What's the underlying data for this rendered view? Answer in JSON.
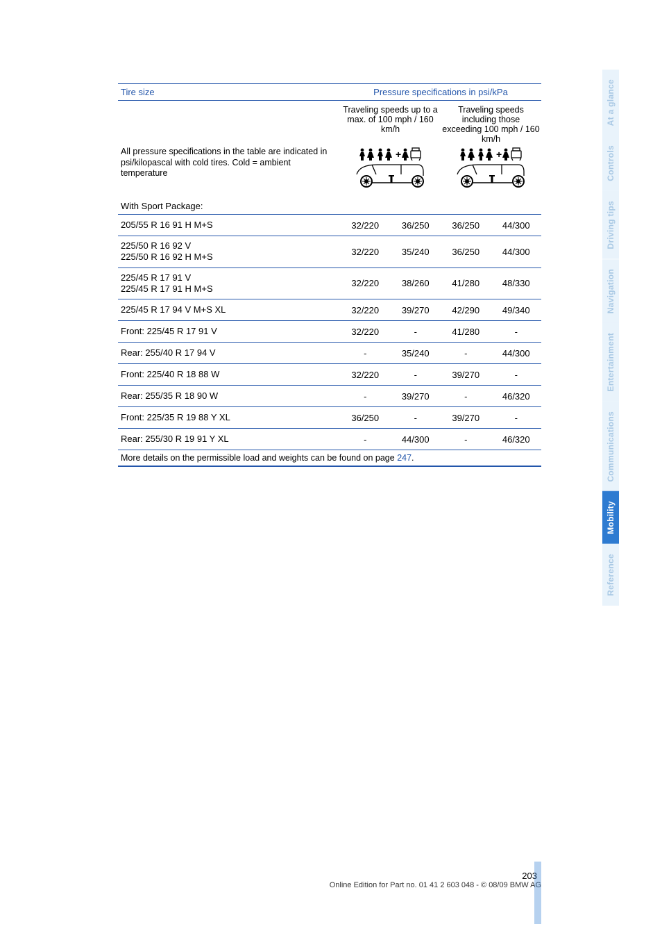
{
  "table": {
    "header": {
      "left": "Tire size",
      "right": "Pressure specifications in psi/kPa"
    },
    "subhead": {
      "col1": "Traveling speeds up to a max. of 100 mph / 160 km/h",
      "col2": "Traveling speeds including those exceeding 100 mph / 160 km/h"
    },
    "note_left": "All pressure specifications in the table are indicated in psi/kilopascal with cold tires. Cold = ambient temperature",
    "section_title": "With Sport Package:",
    "rows": [
      {
        "label": "205/55 R 16 91 H M+S",
        "v": [
          "32/220",
          "36/250",
          "36/250",
          "44/300"
        ]
      },
      {
        "label": "225/50 R 16 92 V\n225/50 R 16 92 H M+S",
        "v": [
          "32/220",
          "35/240",
          "36/250",
          "44/300"
        ]
      },
      {
        "label": "225/45 R 17 91 V\n225/45 R 17 91 H M+S",
        "v": [
          "32/220",
          "38/260",
          "41/280",
          "48/330"
        ]
      },
      {
        "label": "225/45 R 17 94 V M+S XL",
        "v": [
          "32/220",
          "39/270",
          "42/290",
          "49/340"
        ]
      },
      {
        "label": "Front: 225/45 R 17 91 V",
        "v": [
          "32/220",
          "-",
          "41/280",
          "-"
        ]
      },
      {
        "label": "Rear: 255/40 R 17 94 V",
        "v": [
          "-",
          "35/240",
          "-",
          "44/300"
        ]
      },
      {
        "label": "Front: 225/40 R 18 88 W",
        "v": [
          "32/220",
          "-",
          "39/270",
          "-"
        ]
      },
      {
        "label": "Rear: 255/35 R 18 90 W",
        "v": [
          "-",
          "39/270",
          "-",
          "46/320"
        ]
      },
      {
        "label": "Front: 225/35 R 19 88 Y XL",
        "v": [
          "36/250",
          "-",
          "39/270",
          "-"
        ]
      },
      {
        "label": "Rear: 255/30 R 19 91 Y XL",
        "v": [
          "-",
          "44/300",
          "-",
          "46/320"
        ]
      }
    ],
    "footnote_pre": "More details on the permissible load and weights can be found on page ",
    "footnote_page": "247",
    "footnote_post": "."
  },
  "tabs": [
    {
      "label": "At a glance",
      "active": false
    },
    {
      "label": "Controls",
      "active": false
    },
    {
      "label": "Driving tips",
      "active": false
    },
    {
      "label": "Navigation",
      "active": false
    },
    {
      "label": "Entertainment",
      "active": false
    },
    {
      "label": "Communications",
      "active": false
    },
    {
      "label": "Mobility",
      "active": true
    },
    {
      "label": "Reference",
      "active": false
    }
  ],
  "footer": {
    "page_number": "203",
    "line": "Online Edition for Part no. 01 41 2 603 048 - © 08/09 BMW AG"
  },
  "icons": {
    "svg": "<svg width=\"110\" height=\"60\" viewBox=\"0 0 110 60\"><g fill=\"#000\"><g transform=\"translate(10,2)\"><circle cx=\"4\" cy=\"3\" r=\"2.4\"/><path d=\"M2 6 h4 l2 6 l-2 0 l0 6 h-4 l0 -6 l-2 0 z\"/></g><g transform=\"translate(22,2)\"><circle cx=\"4\" cy=\"3\" r=\"2.4\"/><path d=\"M2 6 h4 l3 8 h-3 l0 4 h-4 l0 -4 h-3 z\"/></g><g transform=\"translate(36,2)\"><circle cx=\"4\" cy=\"3\" r=\"2.4\"/><path d=\"M2 6 h4 l2 6 l-2 0 l0 6 h-4 l0 -6 l-2 0 z\"/></g><g transform=\"translate(48,2)\"><circle cx=\"4\" cy=\"3\" r=\"2.4\"/><path d=\"M2 6 h4 l3 8 h-3 l0 4 h-4 l0 -4 h-3 z\"/></g><text x=\"62\" y=\"16\" font-size=\"14\" font-weight=\"bold\">+</text><g transform=\"translate(72,2)\"><circle cx=\"4\" cy=\"3\" r=\"2.4\"/><path d=\"M2 6 h4 l3 8 h-3 l0 4 h-4 l0 -4 h-3 z\"/></g><g transform=\"translate(84,2)\" stroke=\"#000\" fill=\"none\" stroke-width=\"1.3\"><rect x=\"0\" y=\"4\" width=\"14\" height=\"10\" rx=\"1\"/><path d=\"M0 14 l2 4 M14 14 l-2 4\"/><rect x=\"2\" y=\"0\" width=\"10\" height=\"4\"/></g><g transform=\"translate(6,26)\" stroke=\"#000\" fill=\"none\" stroke-width=\"1.3\"><path d=\"M0 14 Q 4 0 30 0 L 88 0 Q 96 0 96 10 L 96 16\"/><path d=\"M22 0 L 28 14\"/><path d=\"M64 0 L 64 14\"/></g><g transform=\"translate(6,40)\"><circle cx=\"14\" cy=\"10\" r=\"8\" fill=\"none\" stroke=\"#000\" stroke-width=\"2\"/><circle cx=\"14\" cy=\"10\" r=\"3\" fill=\"#000\"/><g transform=\"translate(8,4)\" stroke=\"#000\" stroke-width=\"1\"><line x1=\"6\" y1=\"0\" x2=\"6\" y2=\"12\"/><line x1=\"0\" y1=\"6\" x2=\"12\" y2=\"6\"/><line x1=\"2\" y1=\"2\" x2=\"10\" y2=\"10\"/><line x1=\"10\" y1=\"2\" x2=\"2\" y2=\"10\"/></g><circle cx=\"88\" cy=\"10\" r=\"8\" fill=\"none\" stroke=\"#000\" stroke-width=\"2\"/><circle cx=\"88\" cy=\"10\" r=\"3\" fill=\"#000\"/><g transform=\"translate(82,4)\" stroke=\"#000\" stroke-width=\"1\"><line x1=\"6\" y1=\"0\" x2=\"6\" y2=\"12\"/><line x1=\"0\" y1=\"6\" x2=\"12\" y2=\"6\"/><line x1=\"2\" y1=\"2\" x2=\"10\" y2=\"10\"/><line x1=\"10\" y1=\"2\" x2=\"2\" y2=\"10\"/></g><path d=\"M22 12 L 80 12\" stroke=\"#000\" stroke-width=\"1.5\"/><path d=\"M50 12 L 50 2\" stroke=\"#000\" stroke-width=\"3\"/><path d=\"M46 2 L 54 2\" stroke=\"#000\" stroke-width=\"2\"/></g></svg>"
  },
  "colors": {
    "accent": "#2255aa",
    "tab_active_bg": "#2e7bd1",
    "tab_inactive_bg": "#e9f3fb",
    "tab_inactive_fg": "#a8c8e4"
  }
}
